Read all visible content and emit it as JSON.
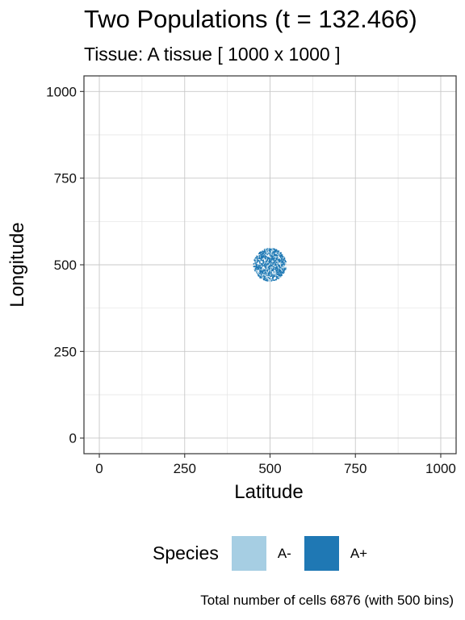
{
  "chart_data": {
    "type": "scatter",
    "title": "Two Populations (t = 132.466)",
    "subtitle": "Tissue: A tissue [ 1000 x 1000 ]",
    "xlabel": "Latitude",
    "ylabel": "Longitude",
    "xlim": [
      -45,
      1045
    ],
    "ylim": [
      -45,
      1045
    ],
    "x_ticks": [
      0,
      250,
      500,
      750,
      1000
    ],
    "y_ticks": [
      0,
      250,
      500,
      750,
      1000
    ],
    "grid": true,
    "legend": {
      "title": "Species",
      "placement": "bottom",
      "entries": [
        {
          "label": "A-",
          "color": "#a6cee3"
        },
        {
          "label": "A+",
          "color": "#1f78b4"
        }
      ]
    },
    "cluster": {
      "center": [
        500,
        500
      ],
      "radius": 48
    },
    "caption": "Total number of cells 6876 (with 500 bins)"
  }
}
